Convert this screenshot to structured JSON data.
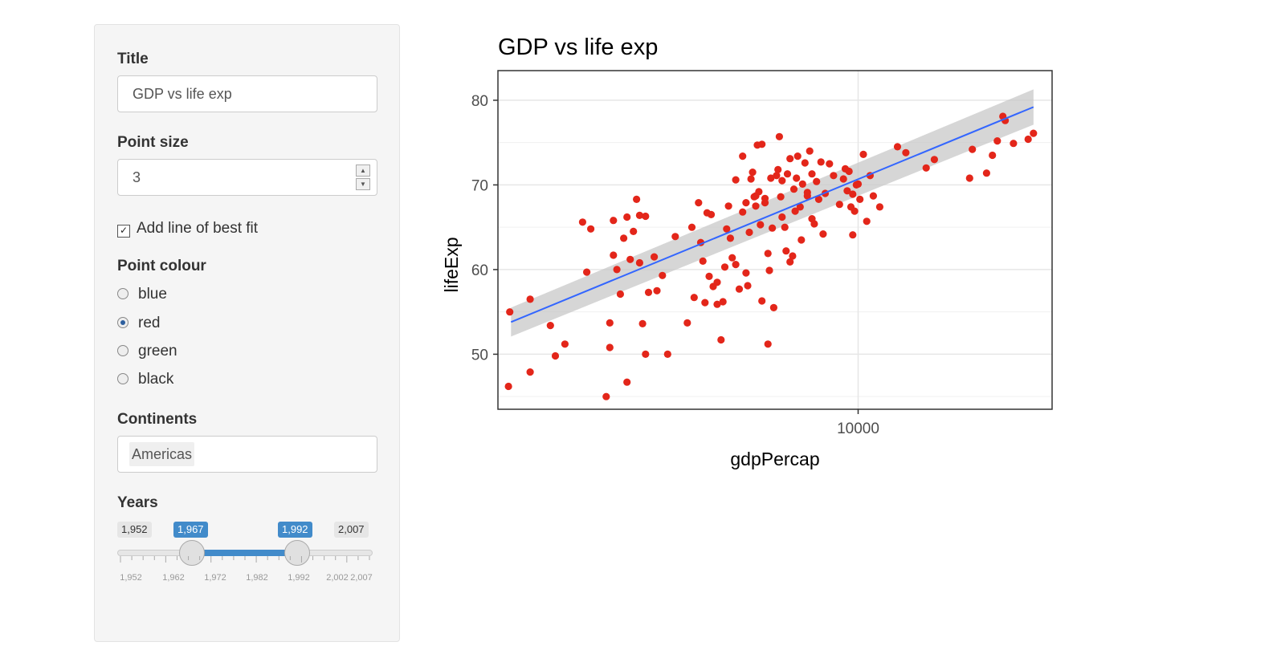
{
  "sidebar": {
    "title_label": "Title",
    "title_value": "GDP vs life exp",
    "point_size_label": "Point size",
    "point_size_value": "3",
    "best_fit_label": "Add line of best fit",
    "best_fit_checked": true,
    "colour_label": "Point colour",
    "colour_options": [
      "blue",
      "red",
      "green",
      "black"
    ],
    "colour_selected": "red",
    "continents_label": "Continents",
    "continents_selected": "Americas",
    "years_label": "Years",
    "years_min": "1,952",
    "years_max": "2,007",
    "years_from": "1,967",
    "years_to": "1,992",
    "years_range_fraction": [
      0.273,
      0.727
    ],
    "year_tick_labels": [
      "1,952",
      "1,962",
      "1,972",
      "1,982",
      "1,992",
      "2,002",
      "2,007"
    ]
  },
  "chart_data": {
    "type": "scatter",
    "title": "GDP vs life exp",
    "xlabel": "gdpPercap",
    "ylabel": "lifeExp",
    "x_scale": "log10",
    "xlim": [
      1300,
      30000
    ],
    "ylim": [
      43.5,
      83.5
    ],
    "x_ticks": [
      10000
    ],
    "y_ticks": [
      50,
      60,
      70,
      80
    ],
    "grid": true,
    "point_color": "#e3261a",
    "fit_line_color": "#3366ff",
    "fit_line": {
      "x": [
        1400,
        27000
      ],
      "y": [
        53.8,
        79.2
      ]
    },
    "x": [
      1380,
      1390,
      1560,
      1560,
      1750,
      1800,
      1900,
      2100,
      2150,
      2200,
      2400,
      2450,
      2450,
      2500,
      2500,
      2550,
      2600,
      2650,
      2700,
      2700,
      2750,
      2800,
      2850,
      2900,
      2900,
      2950,
      3000,
      3000,
      3050,
      3150,
      3200,
      3300,
      3400,
      3550,
      3800,
      3900,
      3950,
      4050,
      4100,
      4150,
      4200,
      4250,
      4300,
      4350,
      4400,
      4500,
      4500,
      4600,
      4650,
      4700,
      4750,
      4800,
      4850,
      4900,
      5000,
      5000,
      5100,
      5200,
      5200,
      5300,
      5300,
      5350,
      5400,
      5450,
      5500,
      5550,
      5600,
      5600,
      5650,
      5700,
      5750,
      5800,
      5800,
      5900,
      5900,
      6000,
      6000,
      6050,
      6100,
      6150,
      6200,
      6300,
      6350,
      6400,
      6450,
      6500,
      6500,
      6600,
      6650,
      6700,
      6800,
      6800,
      6900,
      6950,
      7000,
      7050,
      7100,
      7200,
      7250,
      7300,
      7400,
      7500,
      7500,
      7600,
      7700,
      7700,
      7800,
      7900,
      8000,
      8100,
      8200,
      8300,
      8500,
      8700,
      9000,
      9200,
      9300,
      9400,
      9500,
      9600,
      9700,
      9700,
      9800,
      9900,
      10000,
      10100,
      10300,
      10500,
      10700,
      10900,
      11300,
      12500,
      13100,
      14700,
      15400,
      18800,
      19100,
      20700,
      21400,
      22000,
      22700,
      23000,
      24100,
      26200,
      27000
    ],
    "y": [
      46.2,
      55.0,
      47.9,
      56.5,
      53.4,
      49.8,
      51.2,
      65.6,
      59.7,
      64.8,
      45.0,
      50.8,
      53.7,
      65.8,
      61.7,
      60.0,
      57.1,
      63.7,
      66.2,
      46.7,
      61.2,
      64.5,
      68.3,
      66.4,
      60.8,
      53.6,
      66.3,
      50.0,
      57.3,
      61.5,
      57.5,
      59.3,
      50.0,
      63.9,
      53.7,
      65.0,
      56.7,
      67.9,
      63.2,
      61.0,
      56.1,
      66.7,
      59.2,
      66.5,
      58.0,
      58.5,
      55.9,
      51.7,
      56.2,
      60.3,
      64.8,
      67.5,
      63.7,
      61.4,
      70.6,
      60.6,
      57.7,
      66.8,
      73.4,
      59.6,
      67.9,
      58.1,
      64.4,
      70.7,
      71.5,
      68.6,
      67.5,
      68.7,
      74.7,
      69.2,
      65.3,
      74.8,
      56.3,
      67.9,
      68.4,
      51.2,
      61.9,
      59.9,
      70.8,
      64.9,
      55.5,
      71.1,
      71.8,
      75.7,
      68.6,
      66.2,
      70.5,
      65.0,
      62.2,
      71.3,
      60.9,
      73.1,
      61.6,
      69.5,
      66.9,
      70.8,
      73.4,
      67.4,
      63.5,
      70.1,
      72.6,
      69.1,
      68.7,
      74.0,
      71.3,
      66.0,
      65.4,
      70.4,
      68.3,
      72.7,
      64.2,
      69.0,
      72.5,
      71.1,
      67.7,
      70.7,
      71.9,
      69.3,
      71.6,
      67.4,
      68.9,
      64.1,
      66.9,
      70.0,
      70.1,
      68.3,
      73.6,
      65.7,
      71.1,
      68.7,
      67.4,
      74.5,
      73.8,
      72.0,
      73.0,
      70.8,
      74.2,
      71.4,
      73.5,
      75.2,
      78.1,
      77.6,
      74.9,
      75.4,
      76.1
    ]
  }
}
